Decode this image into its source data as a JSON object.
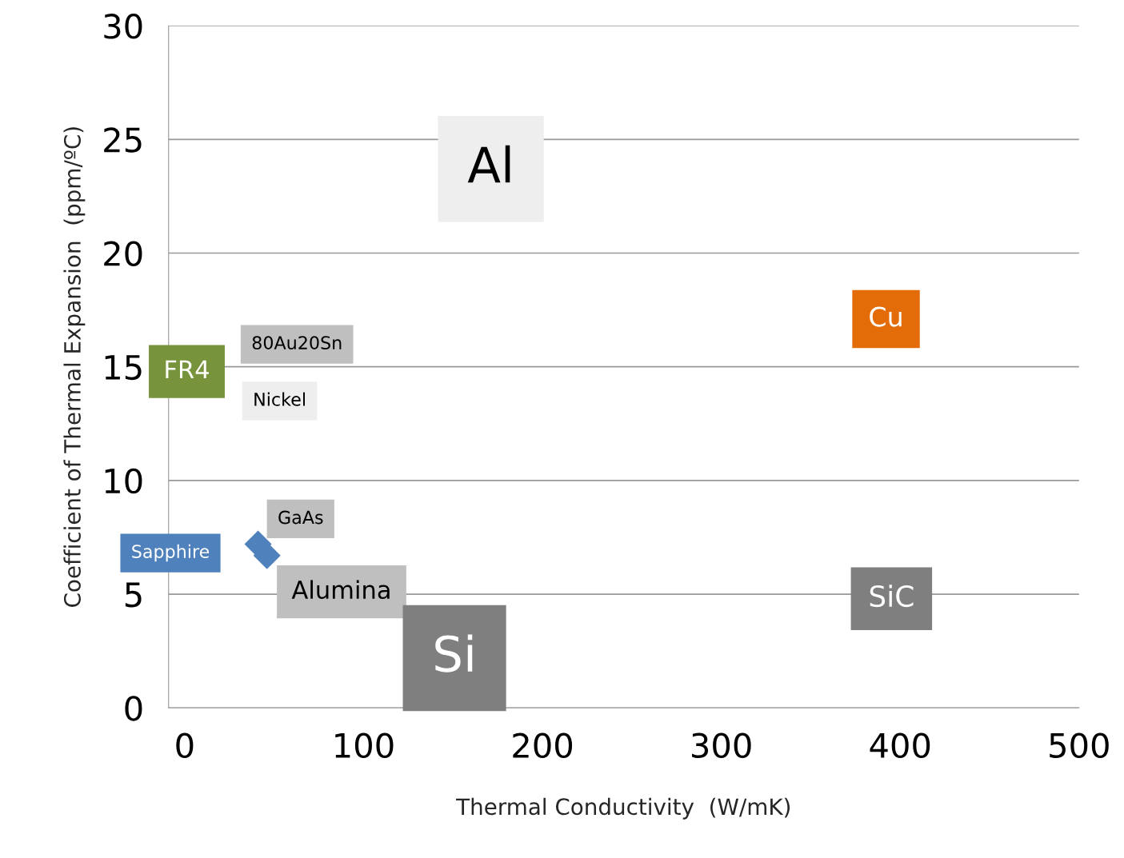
{
  "chart_data": {
    "type": "scatter",
    "xlabel": "Thermal Conductivity  (W/mK)",
    "ylabel": "Coefficient of Thermal Expansion  (ppm/ºC)",
    "xlim": [
      -9,
      500
    ],
    "xticks": [
      0,
      100,
      200,
      300,
      400,
      500
    ],
    "ylim": [
      0,
      30
    ],
    "yticks": [
      0,
      5,
      10,
      15,
      20,
      25,
      30
    ],
    "grid": "y",
    "marker": "diamond",
    "series": [
      {
        "color": "#4f81bd",
        "x": [
          41,
          46
        ],
        "values": [
          7.2,
          6.7
        ]
      }
    ],
    "annotations": [
      "Al",
      "Cu",
      "FR4",
      "80Au20Sn",
      "Nickel",
      "GaAs",
      "Sapphire",
      "Alumina",
      "Si",
      "SiC"
    ]
  }
}
